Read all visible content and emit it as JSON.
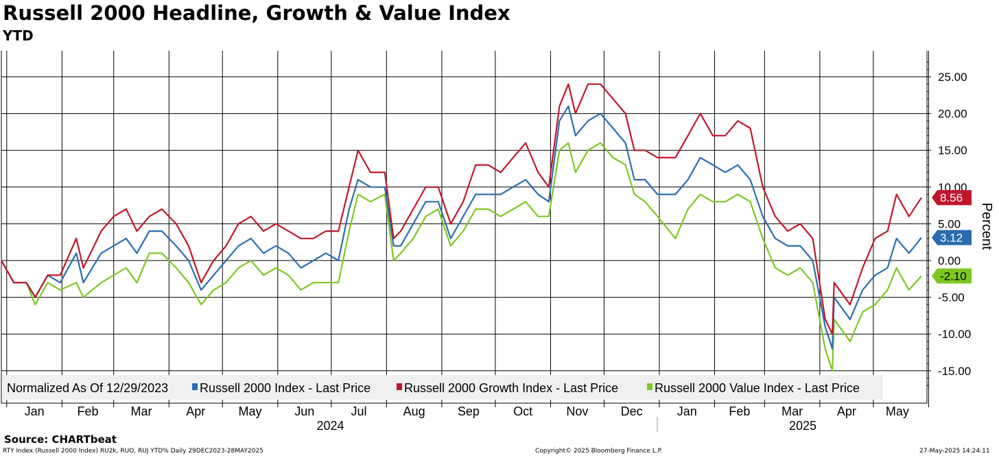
{
  "header": {
    "title": "Russell 2000 Headline, Growth & Value Index",
    "subtitle": "YTD"
  },
  "footer": {
    "source": "Source:  CHARTbeat",
    "description": "RTY Index (Russell 2000 Index) RU2k, RUO, RUJ YTD%  Daily 29DEC2023-28MAY2025",
    "copyright": "Copyright© 2025 Bloomberg Finance L.P.",
    "timestamp": "27-May-2025 14:24:11"
  },
  "colors": {
    "headline": "#2a6db0",
    "growth": "#c0162c",
    "value": "#7dc820",
    "grid": "#000000",
    "legend_bg": "#f0f0f0"
  },
  "chart_data": {
    "type": "line",
    "ylabel": "Percent",
    "ylim": [
      -17,
      28
    ],
    "yticks": [
      "25.00",
      "20.00",
      "15.00",
      "10.00",
      "5.00",
      "0.00",
      "-5.00",
      "-10.00",
      "-15.00"
    ],
    "ytick_values": [
      25,
      20,
      15,
      10,
      5,
      0,
      -5,
      -10,
      -15
    ],
    "x_range": [
      "2023-12-29",
      "2025-05-28"
    ],
    "month_labels": [
      "Jan",
      "Feb",
      "Mar",
      "Apr",
      "May",
      "Jun",
      "Jul",
      "Aug",
      "Sep",
      "Oct",
      "Nov",
      "Dec",
      "Jan",
      "Feb",
      "Mar",
      "Apr",
      "May"
    ],
    "year_labels": [
      "2024",
      "2025"
    ],
    "grid": true,
    "legend_position": "bottom-left",
    "legend_prefix": "Normalized As Of 12/29/2023",
    "series": [
      {
        "name": "Russell 2000 Index - Last Price",
        "color": "#2a6db0",
        "last_label": "3.12",
        "points": [
          [
            "2023-12-29",
            0
          ],
          [
            "2024-01-05",
            -3
          ],
          [
            "2024-01-12",
            -3
          ],
          [
            "2024-01-17",
            -5
          ],
          [
            "2024-01-24",
            -2
          ],
          [
            "2024-01-31",
            -3
          ],
          [
            "2024-02-09",
            1
          ],
          [
            "2024-02-13",
            -3
          ],
          [
            "2024-02-23",
            1
          ],
          [
            "2024-03-01",
            2
          ],
          [
            "2024-03-08",
            3
          ],
          [
            "2024-03-14",
            1
          ],
          [
            "2024-03-21",
            4
          ],
          [
            "2024-03-28",
            4
          ],
          [
            "2024-04-05",
            2
          ],
          [
            "2024-04-12",
            0
          ],
          [
            "2024-04-19",
            -4
          ],
          [
            "2024-04-26",
            -2
          ],
          [
            "2024-05-03",
            0
          ],
          [
            "2024-05-10",
            2
          ],
          [
            "2024-05-17",
            3
          ],
          [
            "2024-05-24",
            1
          ],
          [
            "2024-05-31",
            2
          ],
          [
            "2024-06-07",
            1
          ],
          [
            "2024-06-14",
            -1
          ],
          [
            "2024-06-21",
            0
          ],
          [
            "2024-06-28",
            1
          ],
          [
            "2024-07-05",
            0
          ],
          [
            "2024-07-11",
            7
          ],
          [
            "2024-07-16",
            11
          ],
          [
            "2024-07-23",
            10
          ],
          [
            "2024-07-31",
            10
          ],
          [
            "2024-08-05",
            2
          ],
          [
            "2024-08-09",
            2
          ],
          [
            "2024-08-16",
            5
          ],
          [
            "2024-08-23",
            8
          ],
          [
            "2024-08-30",
            8
          ],
          [
            "2024-09-06",
            3
          ],
          [
            "2024-09-13",
            6
          ],
          [
            "2024-09-20",
            9
          ],
          [
            "2024-09-27",
            9
          ],
          [
            "2024-10-04",
            9
          ],
          [
            "2024-10-11",
            10
          ],
          [
            "2024-10-18",
            11
          ],
          [
            "2024-10-25",
            9
          ],
          [
            "2024-10-31",
            8
          ],
          [
            "2024-11-06",
            19
          ],
          [
            "2024-11-11",
            21
          ],
          [
            "2024-11-15",
            17
          ],
          [
            "2024-11-22",
            19
          ],
          [
            "2024-11-29",
            20
          ],
          [
            "2024-12-06",
            18
          ],
          [
            "2024-12-13",
            16
          ],
          [
            "2024-12-18",
            11
          ],
          [
            "2024-12-24",
            11
          ],
          [
            "2024-12-31",
            9
          ],
          [
            "2025-01-10",
            9
          ],
          [
            "2025-01-17",
            11
          ],
          [
            "2025-01-24",
            14
          ],
          [
            "2025-01-31",
            13
          ],
          [
            "2025-02-07",
            12
          ],
          [
            "2025-02-14",
            13
          ],
          [
            "2025-02-21",
            11
          ],
          [
            "2025-02-28",
            6
          ],
          [
            "2025-03-07",
            3
          ],
          [
            "2025-03-14",
            2
          ],
          [
            "2025-03-21",
            2
          ],
          [
            "2025-03-28",
            0
          ],
          [
            "2025-04-04",
            -9
          ],
          [
            "2025-04-08",
            -12
          ],
          [
            "2025-04-09",
            -5
          ],
          [
            "2025-04-18",
            -8
          ],
          [
            "2025-04-25",
            -4
          ],
          [
            "2025-05-02",
            -2
          ],
          [
            "2025-05-09",
            -1
          ],
          [
            "2025-05-14",
            3
          ],
          [
            "2025-05-21",
            1
          ],
          [
            "2025-05-28",
            3.12
          ]
        ]
      },
      {
        "name": "Russell 2000 Growth Index - Last Price",
        "color": "#c0162c",
        "last_label": "8.56",
        "points": [
          [
            "2023-12-29",
            0
          ],
          [
            "2024-01-05",
            -3
          ],
          [
            "2024-01-12",
            -3
          ],
          [
            "2024-01-17",
            -5
          ],
          [
            "2024-01-24",
            -2
          ],
          [
            "2024-01-31",
            -2
          ],
          [
            "2024-02-09",
            3
          ],
          [
            "2024-02-13",
            -1
          ],
          [
            "2024-02-23",
            4
          ],
          [
            "2024-03-01",
            6
          ],
          [
            "2024-03-08",
            7
          ],
          [
            "2024-03-14",
            4
          ],
          [
            "2024-03-21",
            6
          ],
          [
            "2024-03-28",
            7
          ],
          [
            "2024-04-05",
            5
          ],
          [
            "2024-04-12",
            2
          ],
          [
            "2024-04-19",
            -3
          ],
          [
            "2024-04-26",
            0
          ],
          [
            "2024-05-03",
            2
          ],
          [
            "2024-05-10",
            5
          ],
          [
            "2024-05-17",
            6
          ],
          [
            "2024-05-24",
            4
          ],
          [
            "2024-05-31",
            5
          ],
          [
            "2024-06-07",
            4
          ],
          [
            "2024-06-14",
            3
          ],
          [
            "2024-06-21",
            3
          ],
          [
            "2024-06-28",
            4
          ],
          [
            "2024-07-05",
            4
          ],
          [
            "2024-07-11",
            10
          ],
          [
            "2024-07-16",
            15
          ],
          [
            "2024-07-23",
            12
          ],
          [
            "2024-07-31",
            12
          ],
          [
            "2024-08-05",
            3
          ],
          [
            "2024-08-09",
            4
          ],
          [
            "2024-08-16",
            7
          ],
          [
            "2024-08-23",
            10
          ],
          [
            "2024-08-30",
            10
          ],
          [
            "2024-09-06",
            5
          ],
          [
            "2024-09-13",
            8
          ],
          [
            "2024-09-20",
            13
          ],
          [
            "2024-09-27",
            13
          ],
          [
            "2024-10-04",
            12
          ],
          [
            "2024-10-11",
            14
          ],
          [
            "2024-10-18",
            16
          ],
          [
            "2024-10-25",
            12
          ],
          [
            "2024-10-31",
            10
          ],
          [
            "2024-11-06",
            21
          ],
          [
            "2024-11-11",
            24
          ],
          [
            "2024-11-15",
            20
          ],
          [
            "2024-11-22",
            24
          ],
          [
            "2024-11-29",
            24
          ],
          [
            "2024-12-06",
            22
          ],
          [
            "2024-12-13",
            20
          ],
          [
            "2024-12-18",
            15
          ],
          [
            "2024-12-24",
            15
          ],
          [
            "2024-12-31",
            14
          ],
          [
            "2025-01-10",
            14
          ],
          [
            "2025-01-17",
            17
          ],
          [
            "2025-01-24",
            20
          ],
          [
            "2025-01-31",
            17
          ],
          [
            "2025-02-07",
            17
          ],
          [
            "2025-02-14",
            19
          ],
          [
            "2025-02-21",
            18
          ],
          [
            "2025-02-28",
            10
          ],
          [
            "2025-03-07",
            6
          ],
          [
            "2025-03-14",
            4
          ],
          [
            "2025-03-21",
            5
          ],
          [
            "2025-03-28",
            3
          ],
          [
            "2025-04-04",
            -8
          ],
          [
            "2025-04-08",
            -10
          ],
          [
            "2025-04-09",
            -3
          ],
          [
            "2025-04-18",
            -6
          ],
          [
            "2025-04-25",
            -1
          ],
          [
            "2025-05-02",
            3
          ],
          [
            "2025-05-09",
            4
          ],
          [
            "2025-05-14",
            9
          ],
          [
            "2025-05-21",
            6
          ],
          [
            "2025-05-28",
            8.56
          ]
        ]
      },
      {
        "name": "Russell 2000 Value Index - Last Price",
        "color": "#7dc820",
        "last_label": "-2.10",
        "points": [
          [
            "2023-12-29",
            0
          ],
          [
            "2024-01-05",
            -3
          ],
          [
            "2024-01-12",
            -3
          ],
          [
            "2024-01-17",
            -6
          ],
          [
            "2024-01-24",
            -3
          ],
          [
            "2024-01-31",
            -4
          ],
          [
            "2024-02-09",
            -3
          ],
          [
            "2024-02-13",
            -5
          ],
          [
            "2024-02-23",
            -3
          ],
          [
            "2024-03-01",
            -2
          ],
          [
            "2024-03-08",
            -1
          ],
          [
            "2024-03-14",
            -3
          ],
          [
            "2024-03-21",
            1
          ],
          [
            "2024-03-28",
            1
          ],
          [
            "2024-04-05",
            -1
          ],
          [
            "2024-04-12",
            -3
          ],
          [
            "2024-04-19",
            -6
          ],
          [
            "2024-04-26",
            -4
          ],
          [
            "2024-05-03",
            -3
          ],
          [
            "2024-05-10",
            -1
          ],
          [
            "2024-05-17",
            0
          ],
          [
            "2024-05-24",
            -2
          ],
          [
            "2024-05-31",
            -1
          ],
          [
            "2024-06-07",
            -2
          ],
          [
            "2024-06-14",
            -4
          ],
          [
            "2024-06-21",
            -3
          ],
          [
            "2024-06-28",
            -3
          ],
          [
            "2024-07-05",
            -3
          ],
          [
            "2024-07-11",
            4
          ],
          [
            "2024-07-16",
            9
          ],
          [
            "2024-07-23",
            8
          ],
          [
            "2024-07-31",
            9
          ],
          [
            "2024-08-05",
            0
          ],
          [
            "2024-08-09",
            1
          ],
          [
            "2024-08-16",
            3
          ],
          [
            "2024-08-23",
            6
          ],
          [
            "2024-08-30",
            7
          ],
          [
            "2024-09-06",
            2
          ],
          [
            "2024-09-13",
            4
          ],
          [
            "2024-09-20",
            7
          ],
          [
            "2024-09-27",
            7
          ],
          [
            "2024-10-04",
            6
          ],
          [
            "2024-10-11",
            7
          ],
          [
            "2024-10-18",
            8
          ],
          [
            "2024-10-25",
            6
          ],
          [
            "2024-10-31",
            6
          ],
          [
            "2024-11-06",
            15
          ],
          [
            "2024-11-11",
            16
          ],
          [
            "2024-11-15",
            12
          ],
          [
            "2024-11-22",
            15
          ],
          [
            "2024-11-29",
            16
          ],
          [
            "2024-12-06",
            14
          ],
          [
            "2024-12-13",
            13
          ],
          [
            "2024-12-18",
            9
          ],
          [
            "2024-12-24",
            8
          ],
          [
            "2024-12-31",
            6
          ],
          [
            "2025-01-10",
            3
          ],
          [
            "2025-01-17",
            7
          ],
          [
            "2025-01-24",
            9
          ],
          [
            "2025-01-31",
            8
          ],
          [
            "2025-02-07",
            8
          ],
          [
            "2025-02-14",
            9
          ],
          [
            "2025-02-21",
            8
          ],
          [
            "2025-02-28",
            3
          ],
          [
            "2025-03-07",
            -1
          ],
          [
            "2025-03-14",
            -2
          ],
          [
            "2025-03-21",
            -1
          ],
          [
            "2025-03-28",
            -3
          ],
          [
            "2025-04-04",
            -12
          ],
          [
            "2025-04-08",
            -15
          ],
          [
            "2025-04-09",
            -8
          ],
          [
            "2025-04-18",
            -11
          ],
          [
            "2025-04-25",
            -7
          ],
          [
            "2025-05-02",
            -6
          ],
          [
            "2025-05-09",
            -4
          ],
          [
            "2025-05-14",
            -1
          ],
          [
            "2025-05-21",
            -4
          ],
          [
            "2025-05-28",
            -2.1
          ]
        ]
      }
    ]
  }
}
